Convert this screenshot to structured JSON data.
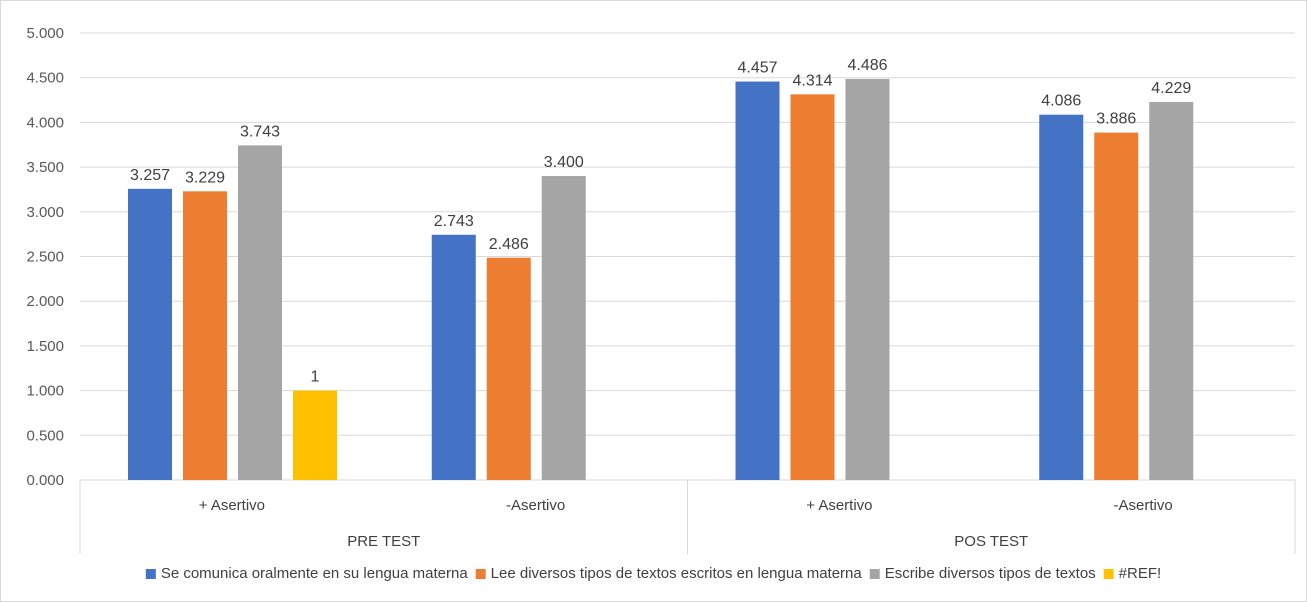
{
  "chart_data": {
    "type": "bar",
    "groups": [
      {
        "label": "PRE TEST",
        "categories": [
          "+ Asertivo",
          "-Asertivo"
        ]
      },
      {
        "label": "POS TEST",
        "categories": [
          "+ Asertivo",
          "-Asertivo"
        ]
      }
    ],
    "categories": [
      "+ Asertivo",
      "-Asertivo",
      "+ Asertivo",
      "-Asertivo"
    ],
    "series": [
      {
        "name": "Se comunica oralmente en su lengua materna",
        "color": "#4472C4",
        "values": [
          3.257,
          2.743,
          4.457,
          4.086
        ],
        "labels": [
          "3.257",
          "2.743",
          "4.457",
          "4.086"
        ]
      },
      {
        "name": "Lee diversos tipos de textos escritos en lengua materna",
        "color": "#ED7D31",
        "values": [
          3.229,
          2.486,
          4.314,
          3.886
        ],
        "labels": [
          "3.229",
          "2.486",
          "4.314",
          "3.886"
        ]
      },
      {
        "name": "Escribe diversos tipos de textos",
        "color": "#A5A5A5",
        "values": [
          3.743,
          3.4,
          4.486,
          4.229
        ],
        "labels": [
          "3.743",
          "3.400",
          "4.486",
          "4.229"
        ]
      },
      {
        "name": "#REF!",
        "color": "#FFC000",
        "values": [
          1,
          null,
          null,
          null
        ],
        "labels": [
          "1",
          null,
          null,
          null
        ]
      }
    ],
    "ylim": [
      0,
      5
    ],
    "y_ticks": [
      0,
      0.5,
      1,
      1.5,
      2,
      2.5,
      3,
      3.5,
      4,
      4.5,
      5
    ],
    "y_tick_labels": [
      "0.000",
      "0.500",
      "1.000",
      "1.500",
      "2.000",
      "2.500",
      "3.000",
      "3.500",
      "4.000",
      "4.500",
      "5.000"
    ],
    "grid": true,
    "legend_position": "bottom"
  }
}
